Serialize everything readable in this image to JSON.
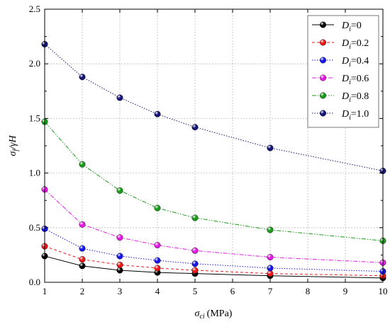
{
  "chart_data": {
    "type": "line",
    "xlabel_symbol": "σ",
    "xlabel_sub": "ci",
    "xlabel_unit": "(MPa)",
    "ylabel_symbol": "σ",
    "ylabel_sub": "f",
    "ylabel_rest": "/γH",
    "xlim": [
      1,
      10
    ],
    "ylim": [
      0,
      2.5
    ],
    "x_ticks": [
      1,
      2,
      3,
      4,
      5,
      6,
      7,
      8,
      9,
      10
    ],
    "y_ticks": [
      "0.0",
      "0.5",
      "1.0",
      "1.5",
      "2.0",
      "2.5"
    ],
    "x_tick_labels": [
      "1",
      "2",
      "3",
      "4",
      "5",
      "6",
      "7",
      "8",
      "9",
      "10"
    ],
    "grid": true,
    "legend_position": "top-right",
    "x": [
      1,
      2,
      3,
      4,
      5,
      7,
      10
    ],
    "series": [
      {
        "label_main": "D",
        "label_sub": "i",
        "label_rest": "=0",
        "color": "#000000",
        "dash": "",
        "values": [
          0.24,
          0.15,
          0.11,
          0.09,
          0.08,
          0.06,
          0.04
        ]
      },
      {
        "label_main": "D",
        "label_sub": "i",
        "label_rest": "=0.2",
        "color": "#e8191a",
        "dash": "4,3",
        "values": [
          0.33,
          0.21,
          0.16,
          0.13,
          0.11,
          0.08,
          0.06
        ]
      },
      {
        "label_main": "D",
        "label_sub": "i",
        "label_rest": "=0.4",
        "color": "#1515e8",
        "dash": "1.5,2",
        "values": [
          0.49,
          0.31,
          0.24,
          0.2,
          0.17,
          0.13,
          0.1
        ]
      },
      {
        "label_main": "D",
        "label_sub": "i",
        "label_rest": "=0.6",
        "color": "#e21be2",
        "dash": "6,2,1.5,2",
        "values": [
          0.85,
          0.53,
          0.41,
          0.34,
          0.29,
          0.23,
          0.18
        ]
      },
      {
        "label_main": "D",
        "label_sub": "i",
        "label_rest": "=0.8",
        "color": "#1a9a1a",
        "dash": "6,2,1.5,2,1.5,2",
        "values": [
          1.47,
          1.08,
          0.84,
          0.68,
          0.59,
          0.48,
          0.38
        ]
      },
      {
        "label_main": "D",
        "label_sub": "i",
        "label_rest": "=1.0",
        "color": "#151575",
        "dash": "1.5,2",
        "values": [
          2.18,
          1.88,
          1.69,
          1.54,
          1.42,
          1.23,
          1.02
        ]
      }
    ]
  }
}
